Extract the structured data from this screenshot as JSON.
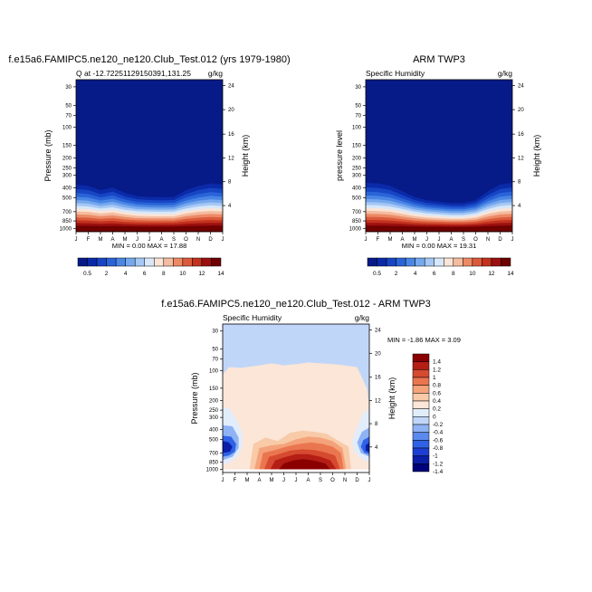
{
  "palettes": {
    "humidity": [
      "#061a88",
      "#0a2aa8",
      "#1746c4",
      "#2a64d8",
      "#4a86e4",
      "#76a8ee",
      "#a6c8f4",
      "#d8e8fa",
      "#fbe4d6",
      "#f4bca0",
      "#ec8a66",
      "#dc5a3c",
      "#c2321e",
      "#9c1010",
      "#6e0000"
    ],
    "diff": [
      "#00007a",
      "#0a1ea8",
      "#1c3ed2",
      "#2f62e6",
      "#5a8aee",
      "#8eb2f4",
      "#c0d6f8",
      "#e2edfc",
      "#fbe6d8",
      "#f8caa8",
      "#f4a27a",
      "#ea7650",
      "#d64a30",
      "#b41e14",
      "#8a0000"
    ]
  },
  "chart_data": [
    {
      "type": "heatmap",
      "title": "f.e15a6.FAMIPC5.ne120_ne120.Club_Test.012 (yrs 1979-1980)",
      "left_subtitle": "Q at -12.72251129150391,131.25",
      "right_subtitle": "g/kg",
      "ylabel": "Pressure (mb)",
      "y2label": "Height (km)",
      "x_ticks": [
        "J",
        "F",
        "M",
        "A",
        "M",
        "J",
        "J",
        "A",
        "S",
        "O",
        "N",
        "D",
        "J"
      ],
      "y_ticks": [
        "30",
        "50",
        "70",
        "100",
        "150",
        "200",
        "250",
        "300",
        "400",
        "500",
        "700",
        "850",
        "1000"
      ],
      "y2_ticks": [
        "24",
        "20",
        "16",
        "12",
        "8",
        "4"
      ],
      "min_max": "MIN =   0.00 MAX =  17.88",
      "colorbar_labels": [
        "0.5",
        "2",
        "4",
        "6",
        "8",
        "10",
        "12",
        "14"
      ],
      "months": [
        0,
        1,
        2,
        3,
        4,
        5,
        6,
        7,
        8,
        9,
        10,
        11,
        12
      ],
      "dry_top_hPa": [
        320,
        330,
        370,
        345,
        395,
        430,
        440,
        445,
        440,
        370,
        330,
        310,
        320
      ]
    },
    {
      "type": "heatmap",
      "title": "ARM TWP3",
      "left_subtitle": "Specific Humidity",
      "right_subtitle": "g/kg",
      "ylabel": "pressure level",
      "y2label": "Height (km)",
      "x_ticks": [
        "J",
        "F",
        "M",
        "A",
        "M",
        "J",
        "J",
        "A",
        "S",
        "O",
        "N",
        "D",
        "J"
      ],
      "y_ticks": [
        "30",
        "50",
        "70",
        "100",
        "150",
        "200",
        "250",
        "300",
        "400",
        "500",
        "700",
        "850",
        "1000"
      ],
      "y2_ticks": [
        "24",
        "20",
        "16",
        "12",
        "8",
        "4"
      ],
      "min_max": "MIN =   0.00 MAX =  19.31",
      "colorbar_labels": [
        "0.5",
        "2",
        "4",
        "6",
        "8",
        "10",
        "12",
        "14"
      ],
      "months": [
        0,
        1,
        2,
        3,
        4,
        5,
        6,
        7,
        8,
        9,
        10,
        11,
        12
      ],
      "dry_top_hPa": [
        305,
        310,
        330,
        380,
        440,
        480,
        500,
        520,
        520,
        480,
        380,
        320,
        305
      ]
    },
    {
      "type": "heatmap",
      "title": "f.e15a6.FAMIPC5.ne120_ne120.Club_Test.012 - ARM TWP3",
      "left_subtitle": "Specific Humidity",
      "right_subtitle": "g/kg",
      "ylabel": "Pressure (mb)",
      "y2label": "Height (km)",
      "x_ticks": [
        "J",
        "F",
        "M",
        "A",
        "M",
        "J",
        "J",
        "A",
        "S",
        "O",
        "N",
        "D",
        "J"
      ],
      "y_ticks": [
        "30",
        "50",
        "70",
        "100",
        "150",
        "200",
        "250",
        "300",
        "400",
        "500",
        "700",
        "850",
        "1000"
      ],
      "y2_ticks": [
        "24",
        "20",
        "16",
        "12",
        "8",
        "4"
      ],
      "min_max": "MIN =  -1.86 MAX =   3.09",
      "colorbar_labels": [
        "1.4",
        "1.2",
        "1",
        "0.8",
        "0.6",
        "0.4",
        "0.2",
        "0",
        "-0.2",
        "-0.4",
        "-0.6",
        "-0.8",
        "-1",
        "-1.2",
        "-1.4"
      ]
    }
  ]
}
